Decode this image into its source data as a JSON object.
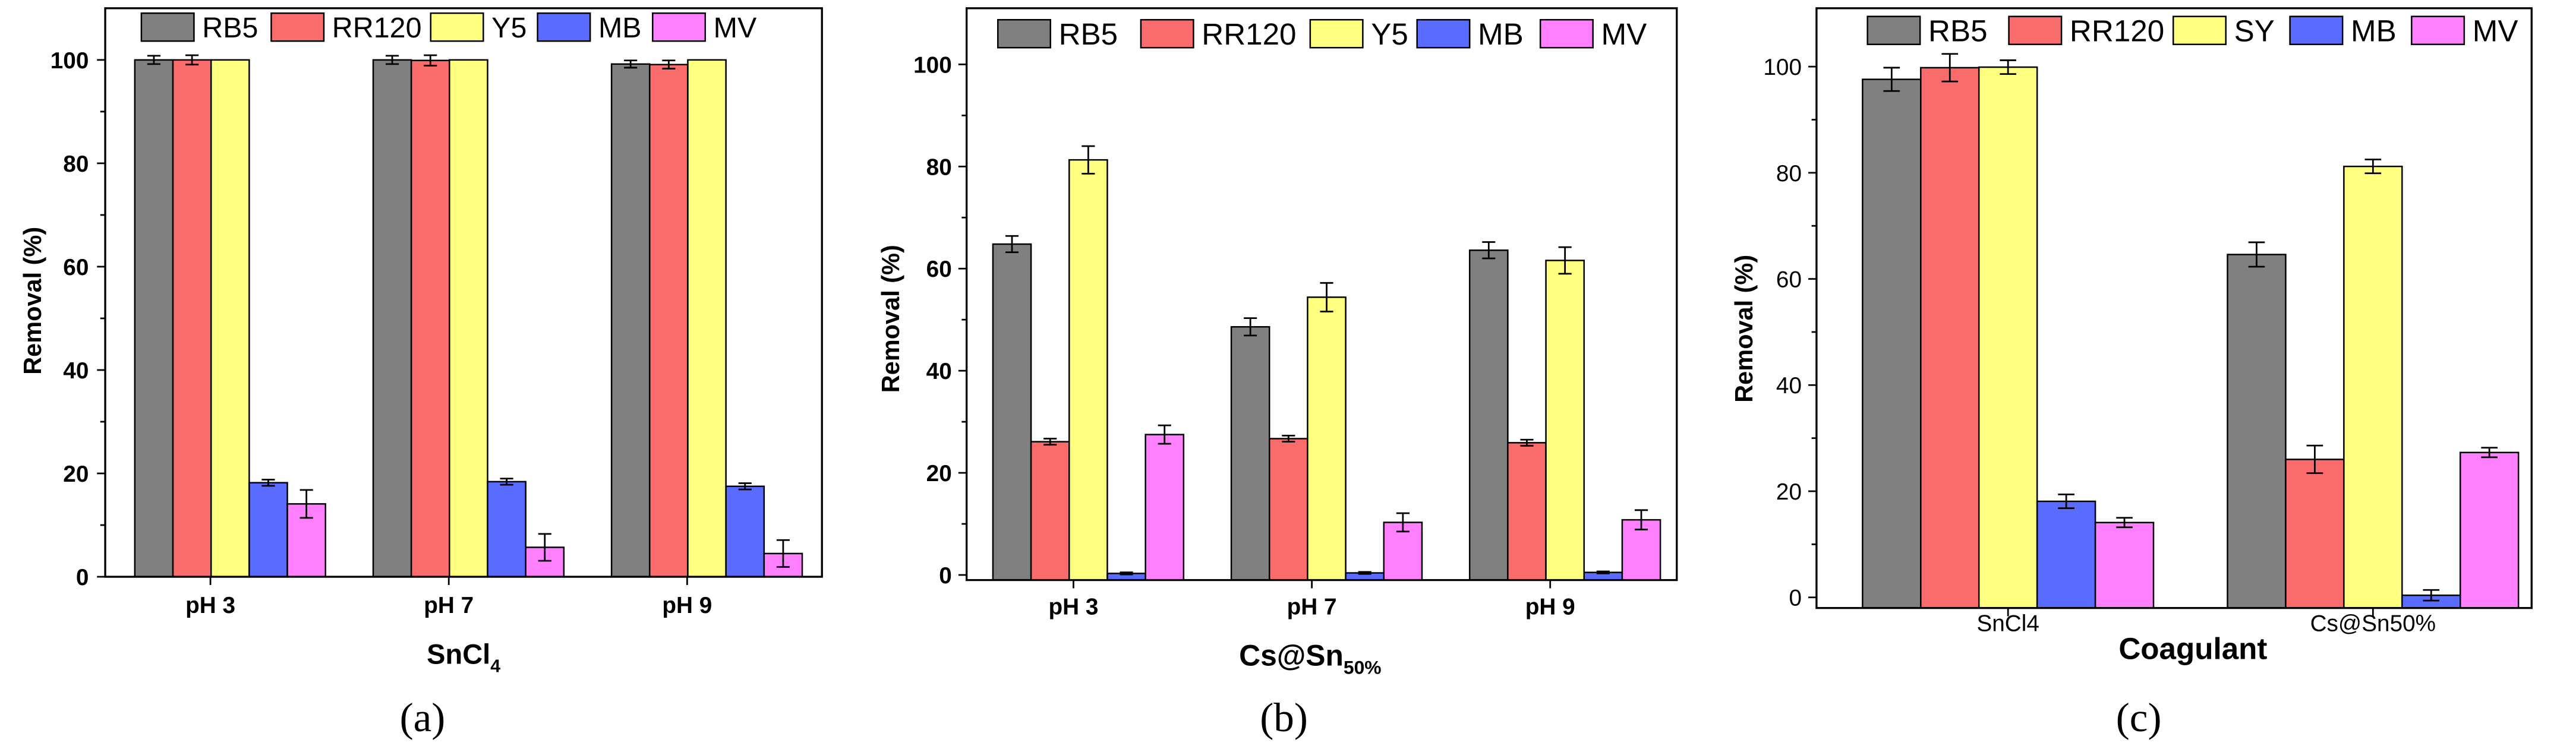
{
  "chart_data": [
    {
      "panel_label": "(a)",
      "type": "bar",
      "title": "",
      "categories": [
        "pH 3",
        "pH 7",
        "pH 9"
      ],
      "xlabel": {
        "base": "SnCl",
        "sub": "4"
      },
      "ylabel": "Removal (%)",
      "ylim": [
        0,
        110
      ],
      "yticks": [
        0,
        20,
        40,
        60,
        80,
        100
      ],
      "grid": false,
      "legend": "top",
      "series": [
        {
          "name": "RB5",
          "color": "#808080",
          "values": [
            100,
            100,
            99.2
          ],
          "errors": [
            0.8,
            0.8,
            0.7
          ]
        },
        {
          "name": "RR120",
          "color": "#fa6b6b",
          "values": [
            100,
            99.9,
            99.1
          ],
          "errors": [
            0.9,
            1.0,
            0.8
          ]
        },
        {
          "name": "Y5",
          "color": "#ffff80",
          "values": [
            100,
            100,
            100
          ],
          "errors": [
            0,
            0,
            0
          ]
        },
        {
          "name": "MB",
          "color": "#5a6bff",
          "values": [
            18.2,
            18.4,
            17.5
          ],
          "errors": [
            0.6,
            0.6,
            0.6
          ]
        },
        {
          "name": "MV",
          "color": "#ff80ff",
          "values": [
            14.1,
            5.7,
            4.5
          ],
          "errors": [
            2.7,
            2.6,
            2.6
          ]
        }
      ]
    },
    {
      "panel_label": "(b)",
      "type": "bar",
      "title": "",
      "categories": [
        "pH 3",
        "pH 7",
        "pH 9"
      ],
      "xlabel": {
        "base": "Cs@Sn",
        "sub": "50%"
      },
      "ylabel": "Removal (%)",
      "ylim": [
        -1,
        111
      ],
      "yticks": [
        0,
        20,
        40,
        60,
        80,
        100
      ],
      "grid": false,
      "legend": "top",
      "series": [
        {
          "name": "RB5",
          "color": "#808080",
          "values": [
            64.8,
            48.6,
            63.6
          ],
          "errors": [
            1.6,
            1.7,
            1.6
          ]
        },
        {
          "name": "RR120",
          "color": "#fa6b6b",
          "values": [
            26.1,
            26.7,
            25.9
          ],
          "errors": [
            0.6,
            0.6,
            0.6
          ]
        },
        {
          "name": "Y5",
          "color": "#ffff80",
          "values": [
            81.3,
            54.4,
            61.6
          ],
          "errors": [
            2.7,
            2.8,
            2.6
          ]
        },
        {
          "name": "MB",
          "color": "#5a6bff",
          "values": [
            0.3,
            0.4,
            0.5
          ],
          "errors": [
            0.2,
            0.2,
            0.2
          ]
        },
        {
          "name": "MV",
          "color": "#ff80ff",
          "values": [
            27.5,
            10.3,
            10.8
          ],
          "errors": [
            1.8,
            1.8,
            1.9
          ]
        }
      ]
    },
    {
      "panel_label": "(c)",
      "type": "bar",
      "title": "",
      "categories": [
        "SnCl4",
        "Cs@Sn50%"
      ],
      "xlabel": {
        "base": "Coagulant"
      },
      "ylabel": "Removal (%)",
      "ylim": [
        -2,
        111
      ],
      "yticks": [
        0,
        20,
        40,
        60,
        80,
        100
      ],
      "grid": false,
      "legend": "top",
      "series": [
        {
          "name": "RB5",
          "color": "#808080",
          "values": [
            97.6,
            64.6
          ],
          "errors": [
            2.2,
            2.3
          ]
        },
        {
          "name": "RR120",
          "color": "#fa6b6b",
          "values": [
            99.8,
            26.0
          ],
          "errors": [
            2.6,
            2.6
          ]
        },
        {
          "name": "SY",
          "color": "#ffff80",
          "values": [
            99.9,
            81.2
          ],
          "errors": [
            1.3,
            1.3
          ]
        },
        {
          "name": "MB",
          "color": "#5a6bff",
          "values": [
            18.1,
            0.4
          ],
          "errors": [
            1.3,
            1.0
          ]
        },
        {
          "name": "MV",
          "color": "#ff80ff",
          "values": [
            14.1,
            27.3
          ],
          "errors": [
            0.9,
            0.9
          ]
        }
      ]
    }
  ]
}
